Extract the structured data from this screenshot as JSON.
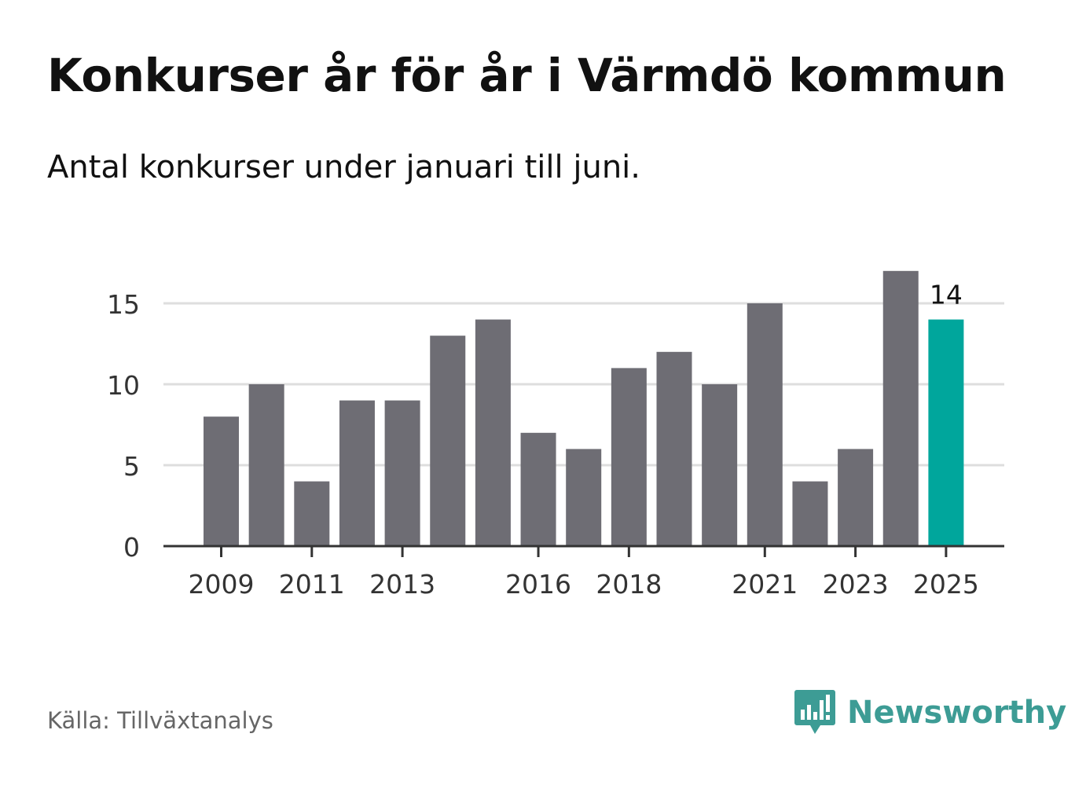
{
  "header": {
    "title": "Konkurser år för år i Värmdö kommun",
    "subtitle": "Antal konkurser under januari till juni."
  },
  "footer": {
    "source": "Källa: Tillväxtanalys",
    "brand": "Newsworthy",
    "brand_icon": "newsworthy-logo-icon"
  },
  "colors": {
    "bar": "#6e6d74",
    "highlight": "#00a69c",
    "grid": "#dedede",
    "axis": "#333333",
    "brand": "#3d9c95"
  },
  "chart_data": {
    "type": "bar",
    "categories": [
      "2009",
      "2010",
      "2011",
      "2012",
      "2013",
      "2014",
      "2015",
      "2016",
      "2017",
      "2018",
      "2019",
      "2020",
      "2021",
      "2022",
      "2023",
      "2024",
      "2025"
    ],
    "values": [
      8,
      10,
      4,
      9,
      9,
      13,
      14,
      7,
      6,
      11,
      12,
      10,
      15,
      4,
      6,
      17,
      14
    ],
    "x_tick_labels": [
      "2009",
      "2011",
      "2013",
      "2016",
      "2018",
      "2021",
      "2023",
      "2025"
    ],
    "y_ticks": [
      0,
      5,
      10,
      15
    ],
    "ylim": [
      0,
      17
    ],
    "highlight_category": "2025",
    "highlight_label": "14",
    "title": "Konkurser år för år i Värmdö kommun",
    "subtitle": "Antal konkurser under januari till juni.",
    "xlabel": "",
    "ylabel": "",
    "grid": true,
    "legend": "none"
  }
}
